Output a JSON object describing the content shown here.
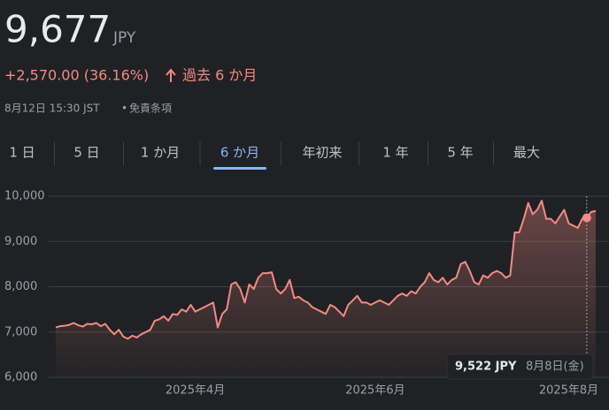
{
  "quote": {
    "price": "9,677",
    "currency": "JPY",
    "change": "+2,570.00 (36.16%)",
    "period": "過去 6 か月",
    "timestamp": "8月12日 15:30 JST",
    "separator": "•",
    "disclaimer": "免責条項"
  },
  "tabs": [
    "1 日",
    "5 日",
    "1 か月",
    "6 か月",
    "年初来",
    "1 年",
    "5 年",
    "最大"
  ],
  "selected_tab": 3,
  "tooltip": {
    "price": "9,522 JPY",
    "date": "8月8日(金)"
  },
  "chart_data": {
    "type": "line",
    "categories": [
      null,
      null,
      null,
      null,
      null,
      null,
      null,
      null,
      null,
      null,
      null,
      null,
      null,
      null,
      null,
      null,
      null,
      null,
      null,
      null,
      null,
      null,
      null,
      null,
      null,
      null,
      null,
      null,
      null,
      null,
      null,
      "2025年4月",
      null,
      null,
      null,
      null,
      null,
      null,
      null,
      null,
      null,
      null,
      null,
      null,
      null,
      null,
      null,
      null,
      null,
      null,
      null,
      null,
      null,
      null,
      null,
      null,
      null,
      null,
      null,
      null,
      null,
      null,
      null,
      null,
      null,
      null,
      null,
      null,
      null,
      null,
      null,
      "2025年6月",
      null,
      null,
      null,
      null,
      null,
      null,
      null,
      null,
      null,
      null,
      null,
      null,
      null,
      null,
      null,
      null,
      null,
      null,
      null,
      null,
      null,
      null,
      null,
      null,
      null,
      null,
      null,
      null,
      null,
      null,
      null,
      null,
      null,
      null,
      null,
      null,
      null,
      null,
      null,
      null,
      null,
      null,
      "2025年8月",
      null,
      null,
      null,
      null,
      null,
      null
    ],
    "series": [
      {
        "name": "9,677",
        "color": "#f28b82",
        "values": [
          7100,
          7130,
          7140,
          7160,
          7200,
          7150,
          7120,
          7180,
          7170,
          7200,
          7130,
          7180,
          7050,
          6950,
          7050,
          6900,
          6850,
          6920,
          6880,
          6950,
          7000,
          7050,
          7250,
          7280,
          7350,
          7250,
          7400,
          7380,
          7500,
          7450,
          7600,
          7450,
          7500,
          7550,
          7600,
          7650,
          7100,
          7400,
          7500,
          8050,
          8100,
          7950,
          7650,
          8050,
          7950,
          8200,
          8300,
          8300,
          8320,
          7950,
          7850,
          7950,
          8150,
          7750,
          7780,
          7700,
          7650,
          7550,
          7500,
          7450,
          7400,
          7600,
          7550,
          7450,
          7350,
          7600,
          7700,
          7800,
          7650,
          7650,
          7600,
          7650,
          7700,
          7650,
          7600,
          7700,
          7800,
          7850,
          7800,
          7900,
          7850,
          8000,
          8100,
          8300,
          8150,
          8100,
          8200,
          8050,
          8150,
          8200,
          8500,
          8550,
          8350,
          8100,
          8050,
          8250,
          8200,
          8300,
          8350,
          8300,
          8200,
          8250,
          9200,
          9200,
          9500,
          9850,
          9600,
          9700,
          9900,
          9500,
          9500,
          9400,
          9550,
          9700,
          9400,
          9350,
          9300,
          9500,
          9522,
          9650,
          9677
        ]
      }
    ],
    "ylim": [
      6000,
      10000
    ],
    "yticks": [
      {
        "value": 6000,
        "label": "6,000"
      },
      {
        "value": 7000,
        "label": "7,000"
      },
      {
        "value": 8000,
        "label": "8,000"
      },
      {
        "value": 9000,
        "label": "9,000"
      },
      {
        "value": 10000,
        "label": "10,000"
      }
    ],
    "grid": true,
    "highlight_index": 118
  }
}
